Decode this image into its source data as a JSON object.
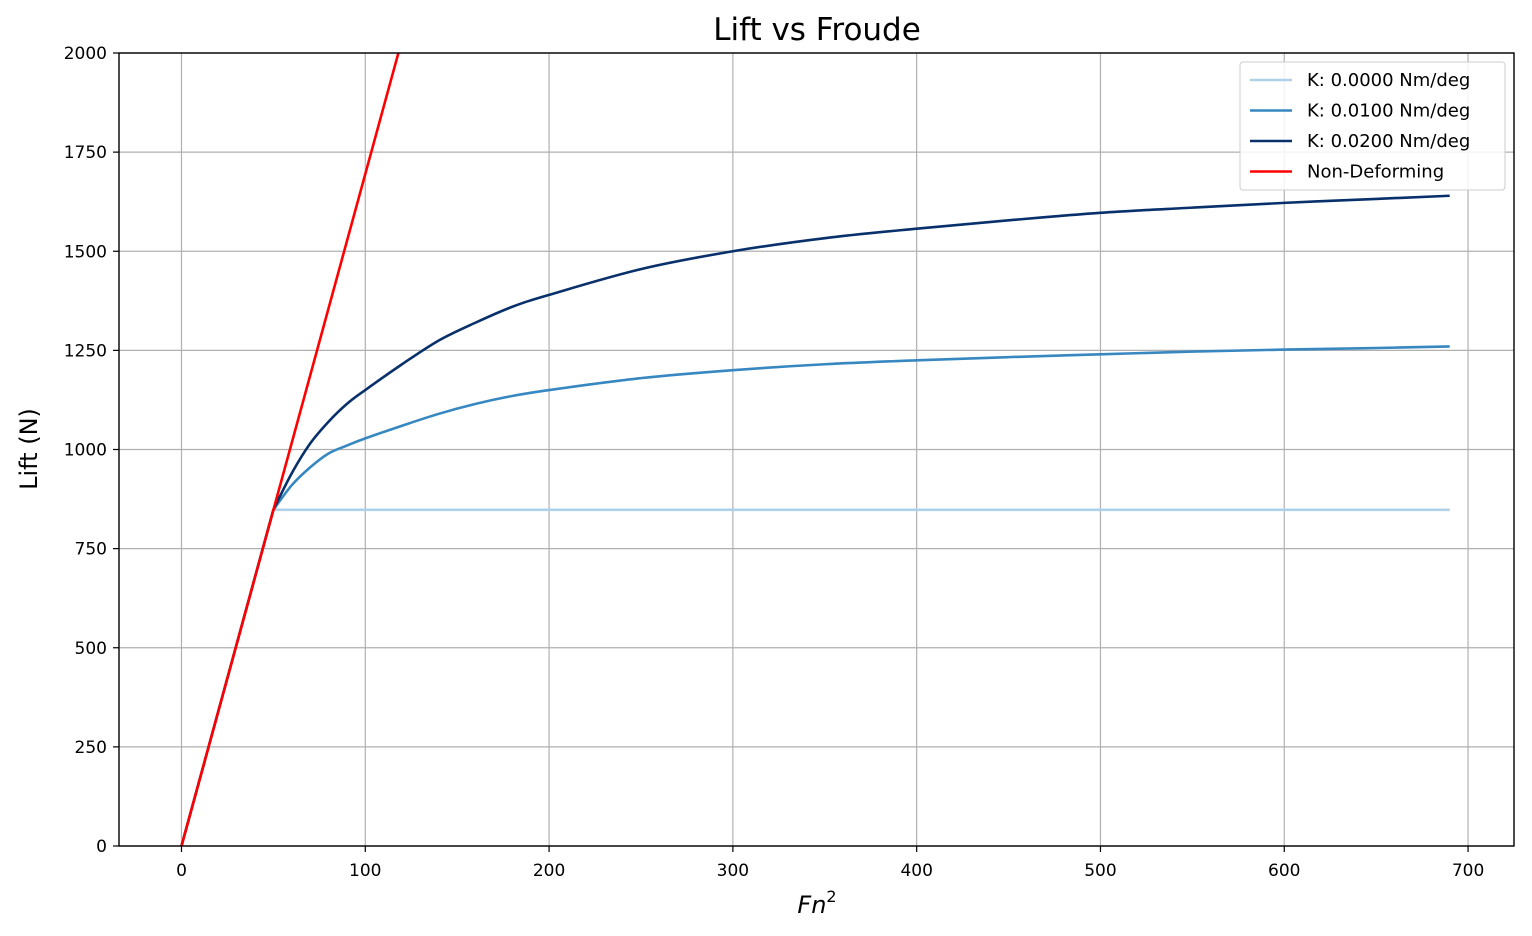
{
  "chart_data": {
    "type": "line",
    "title": "Lift vs Froude",
    "xlabel_base": "Fn",
    "xlabel_sup": "2",
    "ylabel": "Lift (N)",
    "xlim": [
      -34,
      725
    ],
    "ylim": [
      0,
      2000
    ],
    "xticks": [
      0,
      100,
      200,
      300,
      400,
      500,
      600,
      700
    ],
    "yticks": [
      0,
      250,
      500,
      750,
      1000,
      1250,
      1500,
      1750,
      2000
    ],
    "grid": true,
    "legend_position": "top-right",
    "series": [
      {
        "name": "K: 0.0000 Nm/deg",
        "color": "#afd1e7",
        "x": [
          0,
          50,
          690
        ],
        "y": [
          0,
          848,
          848
        ]
      },
      {
        "name": "K: 0.0100 Nm/deg",
        "color": "#3787c0",
        "x": [
          0,
          50,
          60,
          70,
          80,
          90,
          100,
          120,
          140,
          160,
          180,
          200,
          250,
          300,
          350,
          400,
          450,
          500,
          550,
          600,
          650,
          690
        ],
        "y": [
          0,
          848,
          910,
          955,
          990,
          1010,
          1028,
          1060,
          1090,
          1115,
          1135,
          1150,
          1180,
          1200,
          1215,
          1225,
          1233,
          1240,
          1247,
          1252,
          1256,
          1260
        ]
      },
      {
        "name": "K: 0.0200 Nm/deg",
        "color": "#08306b",
        "x": [
          0,
          50,
          60,
          70,
          80,
          90,
          100,
          120,
          140,
          160,
          180,
          200,
          250,
          300,
          350,
          400,
          450,
          500,
          550,
          600,
          650,
          690
        ],
        "y": [
          0,
          848,
          940,
          1015,
          1070,
          1115,
          1150,
          1215,
          1275,
          1320,
          1360,
          1390,
          1455,
          1500,
          1533,
          1557,
          1578,
          1597,
          1610,
          1622,
          1632,
          1640
        ]
      },
      {
        "name": "Non-Deforming",
        "color": "#ff0000",
        "x": [
          0,
          118
        ],
        "y": [
          0,
          2000
        ]
      }
    ]
  }
}
